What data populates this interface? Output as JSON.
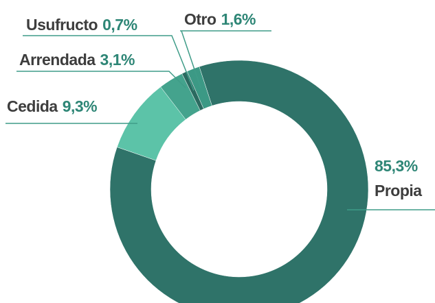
{
  "chart_data": {
    "type": "pie",
    "donut": true,
    "categories": [
      "Propia",
      "Cedida",
      "Arrendada",
      "Usufructo",
      "Otro"
    ],
    "values": [
      85.3,
      9.3,
      3.1,
      0.7,
      1.6
    ],
    "value_labels": [
      "85,3%",
      "9,3%",
      "3,1%",
      "0,7%",
      "1,6%"
    ],
    "colors": [
      "#2f7369",
      "#5cc3a8",
      "#44a38d",
      "#2b6a60",
      "#3c9985"
    ]
  }
}
